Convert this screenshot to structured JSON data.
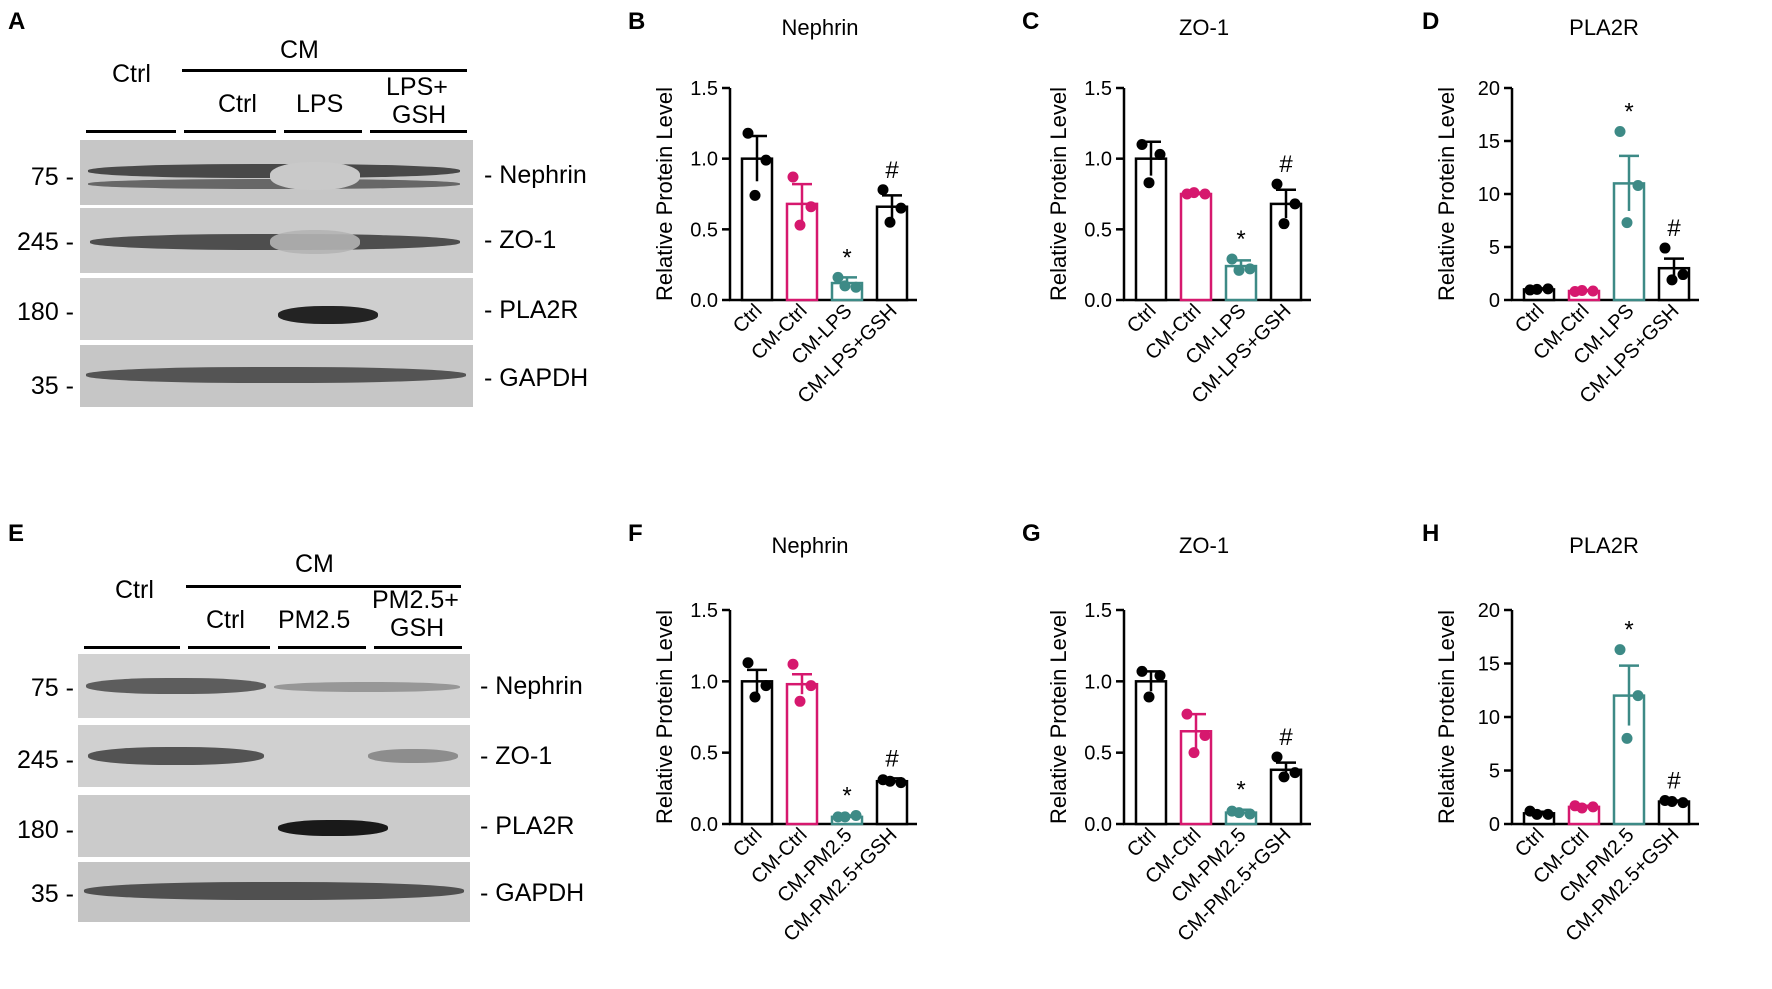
{
  "panels": {
    "A": "A",
    "B": "B",
    "C": "C",
    "D": "D",
    "E": "E",
    "F": "F",
    "G": "G",
    "H": "H"
  },
  "blots": [
    {
      "letter": "A",
      "group_top": "Ctrl",
      "group_cm": "CM",
      "sub_ctrl": "Ctrl",
      "sub_treat": "LPS",
      "sub_gsh_line1": "LPS+",
      "sub_gsh_line2": "GSH",
      "rows": [
        {
          "mw": "75 -",
          "label": "- Nephrin"
        },
        {
          "mw": "245 -",
          "label": "- ZO-1"
        },
        {
          "mw": "180 -",
          "label": "- PLA2R"
        },
        {
          "mw": "35 -",
          "label": "- GAPDH"
        }
      ]
    },
    {
      "letter": "E",
      "group_top": "Ctrl",
      "group_cm": "CM",
      "sub_ctrl": "Ctrl",
      "sub_treat": "PM2.5",
      "sub_gsh_line1": "PM2.5+",
      "sub_gsh_line2": "GSH",
      "rows": [
        {
          "mw": "75 -",
          "label": "- Nephrin"
        },
        {
          "mw": "245 -",
          "label": "- ZO-1"
        },
        {
          "mw": "180 -",
          "label": "- PLA2R"
        },
        {
          "mw": "35 -",
          "label": "- GAPDH"
        }
      ]
    }
  ],
  "colors": {
    "ctrl": "#000000",
    "cm_ctrl": "#d6186e",
    "treat": "#3d8a86",
    "gsh": "#000000"
  },
  "chart_data": [
    {
      "panel": "B",
      "type": "bar",
      "title": "Nephrin",
      "ylabel": "Relative Protein Level",
      "categories": [
        "Ctrl",
        "CM-Ctrl",
        "CM-LPS",
        "CM-LPS+GSH"
      ],
      "values": [
        1.0,
        0.68,
        0.12,
        0.66
      ],
      "errors": [
        0.16,
        0.14,
        0.04,
        0.08
      ],
      "points": [
        [
          1.18,
          0.99,
          0.74
        ],
        [
          0.87,
          0.66,
          0.53
        ],
        [
          0.16,
          0.09,
          0.1
        ],
        [
          0.78,
          0.65,
          0.55
        ]
      ],
      "annotations": [
        "",
        "",
        "*",
        "#"
      ],
      "ylim": [
        0,
        1.5
      ],
      "yticks": [
        0.0,
        0.5,
        1.0,
        1.5
      ],
      "ytick_labels": [
        "0.0",
        "0.5",
        "1.0",
        "1.5"
      ]
    },
    {
      "panel": "C",
      "type": "bar",
      "title": "ZO-1",
      "ylabel": "Relative Protein Level",
      "categories": [
        "Ctrl",
        "CM-Ctrl",
        "CM-LPS",
        "CM-LPS+GSH"
      ],
      "values": [
        1.0,
        0.75,
        0.24,
        0.68
      ],
      "errors": [
        0.12,
        0.01,
        0.04,
        0.1
      ],
      "points": [
        [
          1.1,
          1.03,
          0.83
        ],
        [
          0.75,
          0.75,
          0.76
        ],
        [
          0.29,
          0.22,
          0.21
        ],
        [
          0.82,
          0.68,
          0.54
        ]
      ],
      "annotations": [
        "",
        "",
        "*",
        "#"
      ],
      "ylim": [
        0,
        1.5
      ],
      "yticks": [
        0.0,
        0.5,
        1.0,
        1.5
      ],
      "ytick_labels": [
        "0.0",
        "0.5",
        "1.0",
        "1.5"
      ]
    },
    {
      "panel": "D",
      "type": "bar",
      "title": "PLA2R",
      "ylabel": "Relative Protein Level",
      "categories": [
        "Ctrl",
        "CM-Ctrl",
        "CM-LPS",
        "CM-LPS+GSH"
      ],
      "values": [
        1.0,
        0.85,
        11.0,
        3.0
      ],
      "errors": [
        0.1,
        0.08,
        2.6,
        0.9
      ],
      "points": [
        [
          0.95,
          1.05,
          1.0
        ],
        [
          0.8,
          0.85,
          0.9
        ],
        [
          15.9,
          10.8,
          7.3
        ],
        [
          4.9,
          2.4,
          1.9
        ]
      ],
      "annotations": [
        "",
        "",
        "*",
        "#"
      ],
      "ylim": [
        0,
        20
      ],
      "yticks": [
        0,
        5,
        10,
        15,
        20
      ],
      "ytick_labels": [
        "0",
        "5",
        "10",
        "15",
        "20"
      ]
    },
    {
      "panel": "F",
      "type": "bar",
      "title": "Nephrin",
      "ylabel": "Relative Protein Level",
      "categories": [
        "Ctrl",
        "CM-Ctrl",
        "CM-PM2.5",
        "CM-PM2.5+GSH"
      ],
      "values": [
        1.0,
        0.98,
        0.05,
        0.3
      ],
      "errors": [
        0.08,
        0.07,
        0.01,
        0.02
      ],
      "points": [
        [
          1.13,
          0.97,
          0.89
        ],
        [
          1.12,
          0.97,
          0.86
        ],
        [
          0.05,
          0.06,
          0.05
        ],
        [
          0.31,
          0.29,
          0.3
        ]
      ],
      "annotations": [
        "",
        "",
        "*",
        "#"
      ],
      "ylim": [
        0,
        1.5
      ],
      "yticks": [
        0.0,
        0.5,
        1.0,
        1.5
      ],
      "ytick_labels": [
        "0.0",
        "0.5",
        "1.0",
        "1.5"
      ]
    },
    {
      "panel": "G",
      "type": "bar",
      "title": "ZO-1",
      "ylabel": "Relative Protein Level",
      "categories": [
        "Ctrl",
        "CM-Ctrl",
        "CM-PM2.5",
        "CM-PM2.5+GSH"
      ],
      "values": [
        1.0,
        0.65,
        0.08,
        0.38
      ],
      "errors": [
        0.07,
        0.12,
        0.02,
        0.05
      ],
      "points": [
        [
          1.07,
          1.04,
          0.89
        ],
        [
          0.77,
          0.62,
          0.5
        ],
        [
          0.09,
          0.07,
          0.08
        ],
        [
          0.47,
          0.36,
          0.33
        ]
      ],
      "annotations": [
        "",
        "",
        "*",
        "#"
      ],
      "ylim": [
        0,
        1.5
      ],
      "yticks": [
        0.0,
        0.5,
        1.0,
        1.5
      ],
      "ytick_labels": [
        "0.0",
        "0.5",
        "1.0",
        "1.5"
      ]
    },
    {
      "panel": "H",
      "type": "bar",
      "title": "PLA2R",
      "ylabel": "Relative Protein Level",
      "categories": [
        "Ctrl",
        "CM-Ctrl",
        "CM-PM2.5",
        "CM-PM2.5+GSH"
      ],
      "values": [
        1.0,
        1.6,
        12.0,
        2.1
      ],
      "errors": [
        0.15,
        0.1,
        2.8,
        0.1
      ],
      "points": [
        [
          1.2,
          0.9,
          0.9
        ],
        [
          1.7,
          1.6,
          1.5
        ],
        [
          16.3,
          12.0,
          8.0
        ],
        [
          2.2,
          2.0,
          2.1
        ]
      ],
      "annotations": [
        "",
        "",
        "*",
        "#"
      ],
      "ylim": [
        0,
        20
      ],
      "yticks": [
        0,
        5,
        10,
        15,
        20
      ],
      "ytick_labels": [
        "0",
        "5",
        "10",
        "15",
        "20"
      ]
    }
  ]
}
